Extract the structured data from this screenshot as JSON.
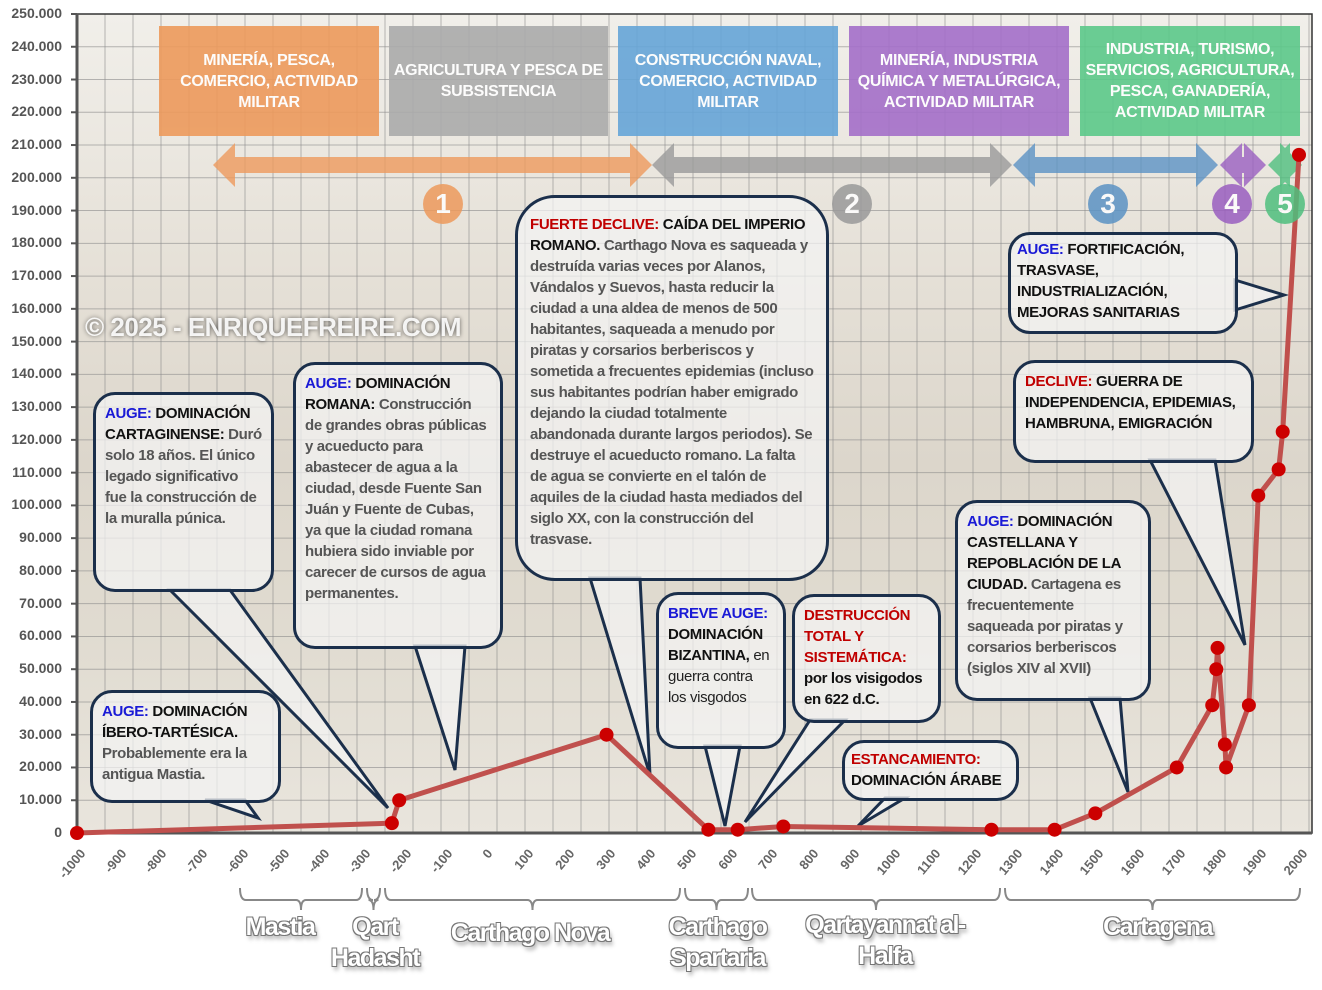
{
  "chart_data": {
    "type": "line",
    "title": "",
    "xlabel": "",
    "ylabel": "",
    "xlim": [
      -1000,
      2000
    ],
    "ylim": [
      0,
      250000
    ],
    "x_ticks": [
      "-1000",
      "-900",
      "-800",
      "-700",
      "-600",
      "-500",
      "-400",
      "-300",
      "-200",
      "-100",
      "0",
      "100",
      "200",
      "300",
      "400",
      "500",
      "600",
      "700",
      "800",
      "900",
      "1000",
      "1100",
      "1200",
      "1300",
      "1400",
      "1500",
      "1600",
      "1700",
      "1800",
      "1900",
      "2000"
    ],
    "y_ticks": [
      "0",
      "10.000",
      "20.000",
      "30.000",
      "40.000",
      "50.000",
      "60.000",
      "70.000",
      "80.000",
      "90.000",
      "100.000",
      "110.000",
      "120.000",
      "130.000",
      "140.000",
      "150.000",
      "160.000",
      "170.000",
      "180.000",
      "190.000",
      "200.000",
      "210.000",
      "220.000",
      "230.000",
      "240.000",
      "250.000"
    ],
    "grid": true,
    "line_color": "#c0504d",
    "marker_color": "#cc0000",
    "points": [
      [
        -1000,
        0
      ],
      [
        -227,
        3000
      ],
      [
        -209,
        10000
      ],
      [
        300,
        30000
      ],
      [
        550,
        1000
      ],
      [
        622,
        1000
      ],
      [
        734,
        2000
      ],
      [
        1245,
        1000
      ],
      [
        1400,
        1000
      ],
      [
        1500,
        6000
      ],
      [
        1700,
        20000
      ],
      [
        1787,
        39000
      ],
      [
        1797,
        50000
      ],
      [
        1800,
        56500
      ],
      [
        1818,
        27000
      ],
      [
        1821,
        20000
      ],
      [
        1877,
        39000
      ],
      [
        1900,
        103000
      ],
      [
        1950,
        111000
      ],
      [
        1960,
        122500
      ],
      [
        2000,
        207000
      ]
    ]
  },
  "watermark": "© 2025 - ENRIQUEFREIRE.COM",
  "banners": [
    {
      "text": "MINERÍA, PESCA, COMERCIO, ACTIVIDAD MILITAR",
      "color": "#ed9a5c"
    },
    {
      "text": "AGRICULTURA Y PESCA DE SUBSISTENCIA",
      "color": "#ababab"
    },
    {
      "text": "CONSTRUCCIÓN NAVAL, COMERCIO, ACTIVIDAD MILITAR",
      "color": "#66a5d8"
    },
    {
      "text": "MINERÍA, INDUSTRIA QUÍMICA Y METALÚRGICA, ACTIVIDAD MILITAR",
      "color": "#a46fc9"
    },
    {
      "text": "INDUSTRIA, TURISMO, SERVICIOS, AGRICULTURA, PESCA, GANADERÍA, ACTIVIDAD MILITAR",
      "color": "#5cc98a"
    }
  ],
  "periods": [
    {
      "num": "1",
      "color": "#ed9a5c"
    },
    {
      "num": "2",
      "color": "#9a9a9a"
    },
    {
      "num": "3",
      "color": "#5b92c4"
    },
    {
      "num": "4",
      "color": "#9a5fc0"
    },
    {
      "num": "5",
      "color": "#4fbf7e"
    }
  ],
  "callouts": {
    "ibero": {
      "label": "AUGE:",
      "title": "DOMINACIÓN ÍBERO-TARTÉSICA.",
      "body": " Probablemente era la antigua Mastia."
    },
    "cartaginense": {
      "label": "AUGE:",
      "title": "DOMINACIÓN CARTAGINENSE:",
      "body": " Duró solo 18 años. El único legado significativo fue la construcción de la muralla púnica."
    },
    "romana": {
      "label": "AUGE:",
      "title": "DOMINACIÓN ROMANA:",
      "body": " Construcción de grandes obras públicas y acueducto para abastecer de agua a la ciudad, desde Fuente San Juán y Fuente de Cubas, ya que la ciudad romana hubiera sido inviable por carecer de cursos de agua permanentes."
    },
    "declive_romano": {
      "label": "FUERTE DECLIVE:",
      "title": "CAÍDA DEL IMPERIO ROMANO.",
      "body": " Carthago Nova es saqueada y destruída varias veces por Alanos, Vándalos y Suevos, hasta reducir la ciudad a una aldea de menos de 500 habitantes, saqueada a menudo por piratas y corsarios berberiscos y sometida a frecuentes epidemias (incluso sus habitantes podrían haber emigrado dejando la ciudad totalmente abandonada durante largos periodos). Se destruye el acueducto romano. La falta de agua se convierte en el talón de aquiles de la ciudad hasta mediados del siglo XX, con la construcción del trasvase."
    },
    "bizantina": {
      "label": "BREVE AUGE:",
      "title": "DOMINACIÓN BIZANTINA,",
      "body": " en guerra contra los visgodos"
    },
    "destruccion": {
      "label": "DESTRUCCIÓN TOTAL Y SISTEMÁTICA:",
      "title": "por los visigodos en 622 d.C."
    },
    "arabe": {
      "label": "ESTANCAMIENTO:",
      "title": "DOMINACIÓN ÁRABE"
    },
    "castellana": {
      "label": "AUGE:",
      "title": "DOMINACIÓN CASTELLANA Y REPOBLACIÓN DE LA CIUDAD.",
      "body": " Cartagena es frecuentemente saqueada por piratas y corsarios berberiscos (siglos XIV al XVII)"
    },
    "independencia": {
      "label": "DECLIVE:",
      "title": "GUERRA DE INDEPENDENCIA, EPIDEMIAS, HAMBRUNA, EMIGRACIÓN"
    },
    "fortificacion": {
      "label": "AUGE:",
      "title": "FORTIFICACIÓN, TRASVASE, INDUSTRIALIZACIÓN, MEJORAS SANITARIAS"
    }
  },
  "label_colors": {
    "auge": "#1a1ad6",
    "declive": "#c00000"
  },
  "eras": [
    "Mastia",
    "Qart Hadasht",
    "Carthago Nova",
    "Carthago Spartaria",
    "Qartayannat al-Halfa",
    "Cartagena"
  ]
}
